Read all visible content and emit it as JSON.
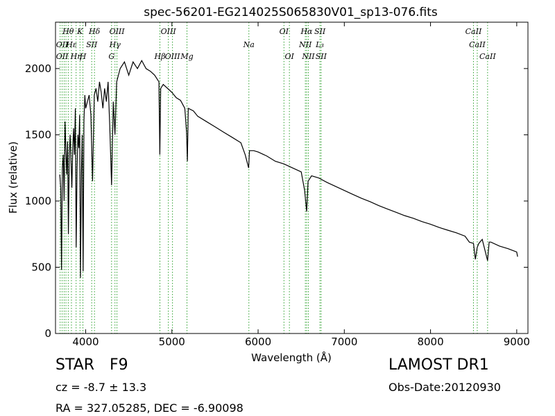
{
  "chart_data": {
    "type": "line",
    "title": "spec-56201-EG214025S065830V01_sp13-076.fits",
    "xlabel": "Wavelength (Å)",
    "ylabel": "Flux (relative)",
    "xlim": [
      3650,
      9130
    ],
    "ylim": [
      0,
      2350
    ],
    "xticks": [
      4000,
      5000,
      6000,
      7000,
      8000,
      9000
    ],
    "yticks": [
      0,
      500,
      1000,
      1500,
      2000
    ],
    "grid": false,
    "line_color": "#000000",
    "marker_color": "#2ca02c",
    "series": [
      {
        "x": [
          3700,
          3710,
          3720,
          3730,
          3740,
          3750,
          3760,
          3770,
          3780,
          3790,
          3800,
          3810,
          3820,
          3830,
          3840,
          3850,
          3860,
          3870,
          3880,
          3890,
          3900,
          3910,
          3920,
          3930,
          3940,
          3950,
          3960,
          3970,
          3980,
          3990,
          4000,
          4020,
          4040,
          4060,
          4080,
          4100,
          4120,
          4140,
          4160,
          4180,
          4200,
          4220,
          4240,
          4260,
          4280,
          4300,
          4320,
          4340,
          4360,
          4380,
          4400,
          4450,
          4500,
          4550,
          4600,
          4650,
          4700,
          4750,
          4800,
          4850,
          4860,
          4870,
          4900,
          4950,
          5000,
          5050,
          5100,
          5150,
          5170,
          5180,
          5190,
          5250,
          5300,
          5400,
          5500,
          5600,
          5700,
          5800,
          5850,
          5890,
          5900,
          5950,
          6000,
          6100,
          6200,
          6300,
          6400,
          6500,
          6540,
          6563,
          6580,
          6620,
          6700,
          6800,
          6900,
          7000,
          7100,
          7200,
          7300,
          7400,
          7500,
          7600,
          7700,
          7800,
          7900,
          8000,
          8100,
          8200,
          8300,
          8400,
          8450,
          8498,
          8520,
          8542,
          8560,
          8600,
          8662,
          8680,
          8700,
          8800,
          8900,
          9000,
          9010
        ],
        "values": [
          1200,
          1100,
          480,
          1250,
          1350,
          1000,
          1600,
          1400,
          1200,
          1450,
          750,
          1350,
          1500,
          1300,
          1100,
          1400,
          1550,
          1350,
          1700,
          650,
          1250,
          1500,
          1400,
          1650,
          420,
          1200,
          1500,
          470,
          1600,
          1800,
          1700,
          1750,
          1800,
          1650,
          1150,
          1800,
          1850,
          1750,
          1900,
          1820,
          1700,
          1850,
          1750,
          1900,
          1550,
          1120,
          1750,
          1500,
          1900,
          1950,
          2000,
          2050,
          1950,
          2050,
          2000,
          2060,
          2000,
          1980,
          1950,
          1900,
          1350,
          1850,
          1880,
          1850,
          1820,
          1780,
          1760,
          1700,
          1520,
          1300,
          1700,
          1680,
          1640,
          1600,
          1560,
          1520,
          1480,
          1440,
          1350,
          1250,
          1380,
          1380,
          1370,
          1340,
          1300,
          1280,
          1250,
          1220,
          1080,
          920,
          1150,
          1190,
          1175,
          1140,
          1110,
          1080,
          1050,
          1020,
          995,
          965,
          940,
          915,
          890,
          870,
          845,
          825,
          800,
          780,
          760,
          735,
          690,
          680,
          560,
          650,
          680,
          710,
          550,
          690,
          690,
          660,
          640,
          615,
          580
        ]
      }
    ],
    "line_labels": [
      {
        "text": "Hθ",
        "x": 3797,
        "row": 1
      },
      {
        "text": "K",
        "x": 3934,
        "row": 1
      },
      {
        "text": "Hδ",
        "x": 4102,
        "row": 1
      },
      {
        "text": "OIII",
        "x": 4363,
        "row": 1
      },
      {
        "text": "OIII",
        "x": 4959,
        "row": 1
      },
      {
        "text": "OI",
        "x": 6300,
        "row": 1
      },
      {
        "text": "Hα",
        "x": 6563,
        "row": 1
      },
      {
        "text": "SII",
        "x": 6717,
        "row": 1
      },
      {
        "text": "CaII",
        "x": 8498,
        "row": 1
      },
      {
        "text": "OII",
        "x": 3727,
        "row": 2
      },
      {
        "text": "Hε",
        "x": 3835,
        "row": 2
      },
      {
        "text": "SII",
        "x": 4070,
        "row": 2
      },
      {
        "text": "Hγ",
        "x": 4340,
        "row": 2
      },
      {
        "text": "Na",
        "x": 5893,
        "row": 2
      },
      {
        "text": "NII",
        "x": 6548,
        "row": 2
      },
      {
        "text": "L₃",
        "x": 6716,
        "row": 2
      },
      {
        "text": "CaII",
        "x": 8542,
        "row": 2
      },
      {
        "text": "OII",
        "x": 3727,
        "row": 3
      },
      {
        "text": "Hη",
        "x": 3889,
        "row": 3
      },
      {
        "text": "H",
        "x": 3968,
        "row": 3
      },
      {
        "text": "G",
        "x": 4300,
        "row": 3
      },
      {
        "text": "OIII",
        "x": 5007,
        "row": 3
      },
      {
        "text": "Hβ",
        "x": 4861,
        "row": 3
      },
      {
        "text": "Mg",
        "x": 5175,
        "row": 3
      },
      {
        "text": "OI",
        "x": 6363,
        "row": 3
      },
      {
        "text": "NII",
        "x": 6583,
        "row": 3
      },
      {
        "text": "SII",
        "x": 6731,
        "row": 3
      },
      {
        "text": "CaII",
        "x": 8662,
        "row": 3
      }
    ],
    "line_markers": [
      3704,
      3727,
      3750,
      3771,
      3798,
      3835,
      3889,
      3934,
      3968,
      4070,
      4102,
      4300,
      4340,
      4363,
      4861,
      4959,
      5007,
      5175,
      5893,
      6300,
      6363,
      6548,
      6563,
      6583,
      6717,
      6731,
      8498,
      8542,
      8662
    ]
  },
  "info": {
    "object_type": "STAR",
    "subclass": "F9",
    "survey": "LAMOST DR1",
    "cz": "cz = -8.7 ± 13.3",
    "obs_date": "Obs-Date:20120930",
    "coords": "RA = 327.05285, DEC = -6.90098"
  }
}
